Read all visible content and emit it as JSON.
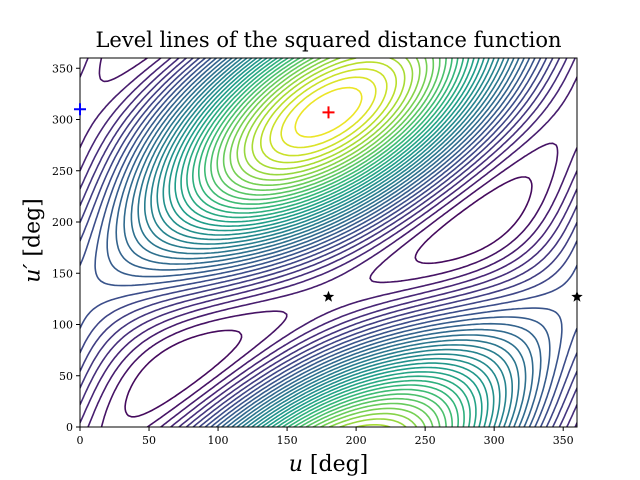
{
  "chart_data": {
    "type": "contour",
    "title": "Level lines of the squared distance function",
    "xlabel_var": "u",
    "xlabel_unit": "[deg]",
    "ylabel_var": "u′",
    "ylabel_unit": "[deg]",
    "xlim": [
      0,
      360
    ],
    "ylim": [
      0,
      360
    ],
    "xticks": [
      0,
      50,
      100,
      150,
      200,
      250,
      300,
      350
    ],
    "yticks": [
      0,
      50,
      100,
      150,
      200,
      250,
      300,
      350
    ],
    "colormap": "viridis",
    "grid": false,
    "markers": [
      {
        "x": 180,
        "y": 307,
        "symbol": "plus",
        "color": "#ff0000"
      },
      {
        "x": 180,
        "y": 127,
        "symbol": "star",
        "color": "#000000"
      },
      {
        "x": 360,
        "y": 127,
        "symbol": "star",
        "color": "#000000"
      },
      {
        "x": 0,
        "y": 310,
        "symbol": "plus",
        "color": "#0000ff"
      }
    ]
  }
}
